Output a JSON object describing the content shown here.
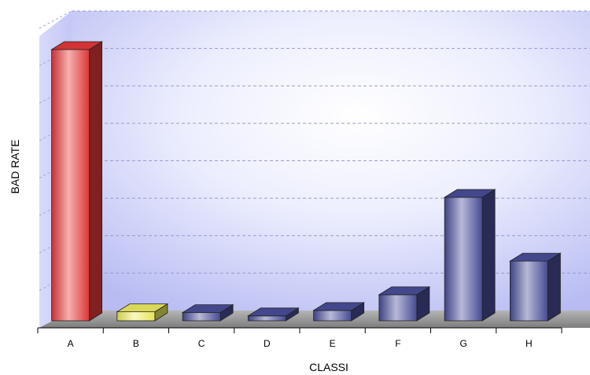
{
  "chart_data": {
    "type": "bar",
    "title": "",
    "xlabel": "CLASSI",
    "ylabel": "BAD RATE",
    "categories": [
      "A",
      "B",
      "C",
      "D",
      "E",
      "F",
      "G",
      "H"
    ],
    "values": [
      100,
      3.3,
      3.0,
      1.8,
      3.8,
      9.6,
      45.5,
      22.0
    ],
    "ylim": [
      0,
      100
    ],
    "grid": true,
    "legend": "none",
    "colors": {
      "A": "#e83a3a",
      "B": "#f2f060",
      "default": "#4a4f9a",
      "wall": "#c9ccf6",
      "floor": "#8a8a8a"
    }
  }
}
